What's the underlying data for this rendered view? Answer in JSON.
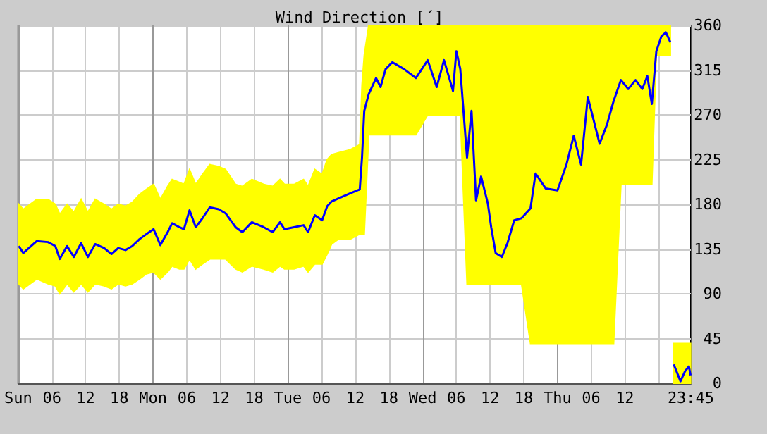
{
  "chart_data": {
    "type": "line",
    "title": "Wind Direction [´]",
    "grid": true,
    "marker": "none",
    "xlim": [
      "--01-07T00:00",
      "--01-11T23:45"
    ],
    "xticks": [
      {
        "value": "--01-07T00:00",
        "label": "Sun"
      },
      {
        "value": "--01-07T06:00",
        "label": "06"
      },
      {
        "value": "--01-07T12:00",
        "label": "12"
      },
      {
        "value": "--01-07T18:00",
        "label": "18"
      },
      {
        "value": "--01-08T00:00",
        "label": "Mon"
      },
      {
        "value": "--01-08T06:00",
        "label": "06"
      },
      {
        "value": "--01-08T12:00",
        "label": "12"
      },
      {
        "value": "--01-08T18:00",
        "label": "18"
      },
      {
        "value": "--01-09T00:00",
        "label": "Tue"
      },
      {
        "value": "--01-09T06:00",
        "label": "06"
      },
      {
        "value": "--01-09T12:00",
        "label": "12"
      },
      {
        "value": "--01-09T18:00",
        "label": "18"
      },
      {
        "value": "--01-10T00:00",
        "label": "Wed"
      },
      {
        "value": "--01-10T06:00",
        "label": "06"
      },
      {
        "value": "--01-10T12:00",
        "label": "12"
      },
      {
        "value": "--01-10T18:00",
        "label": "18"
      },
      {
        "value": "--01-11T00:00",
        "label": "Thu"
      },
      {
        "value": "--01-11T06:00",
        "label": "06"
      },
      {
        "value": "--01-11T12:00",
        "label": "12"
      },
      {
        "value": "--01-11T18:00",
        "label": null
      },
      {
        "value": "--01-11T23:45",
        "label": "23:45"
      }
    ],
    "ylim": [
      0,
      360
    ],
    "yticks": [
      0,
      45,
      90,
      135,
      180,
      225,
      270,
      315,
      360
    ],
    "series": [
      {
        "color": "#0000ff",
        "x": [
          "--01-07T00:06",
          "--01-07T00:54",
          "--01-07T03:18",
          "--01-07T05:18",
          "--01-07T06:36",
          "--01-07T07:24",
          "--01-07T08:42",
          "--01-07T09:54",
          "--01-07T11:12",
          "--01-07T12:24",
          "--01-07T13:42",
          "--01-07T15:18",
          "--01-07T16:36",
          "--01-07T17:48",
          "--01-07T19:06",
          "--01-07T20:18",
          "--01-07T21:36",
          "--01-07T22:48",
          "--01-08T00:06",
          "--01-08T01:18",
          "--01-08T02:36",
          "--01-08T03:24",
          "--01-08T04:42",
          "--01-08T05:30",
          "--01-08T06:30",
          "--01-08T07:36",
          "--01-08T08:48",
          "--01-08T10:06",
          "--01-08T11:42",
          "--01-08T12:54",
          "--01-08T14:42",
          "--01-08T15:54",
          "--01-08T17:36",
          "--01-08T19:42",
          "--01-08T21:18",
          "--01-08T22:36",
          "--01-08T23:24",
          "--01-09T01:06",
          "--01-09T02:48",
          "--01-09T03:36",
          "--01-09T04:48",
          "--01-09T06:06",
          "--01-09T07:00",
          "--01-09T07:48",
          "--01-09T09:00",
          "--01-09T11:06",
          "--01-09T12:48",
          "--01-09T13:12",
          "--01-09T13:36",
          "--01-09T14:24",
          "--01-09T15:42",
          "--01-09T16:30",
          "--01-09T17:24",
          "--01-09T18:36",
          "--01-09T20:42",
          "--01-09T22:48",
          "--01-10T00:54",
          "--01-10T02:30",
          "--01-10T03:48",
          "--01-10T05:24",
          "--01-10T06:00",
          "--01-10T06:42",
          "--01-10T07:54",
          "--01-10T08:42",
          "--01-10T09:30",
          "--01-10T10:24",
          "--01-10T11:36",
          "--01-10T12:12",
          "--01-10T13:00",
          "--01-10T14:06",
          "--01-10T15:06",
          "--01-10T16:18",
          "--01-10T17:36",
          "--01-10T19:12",
          "--01-10T20:06",
          "--01-10T21:54",
          "--01-11T00:00",
          "--01-11T01:36",
          "--01-11T02:54",
          "--01-11T04:12",
          "--01-11T05:24",
          "--01-11T07:30",
          "--01-11T08:48",
          "--01-11T10:00",
          "--01-11T11:18",
          "--01-11T12:36",
          "--01-11T13:54",
          "--01-11T15:06",
          "--01-11T16:00",
          "--01-11T16:48",
          "--01-11T17:36",
          "--01-11T18:30",
          "--01-11T19:18",
          "--01-11T20:06",
          "--01-11T20:24",
          "--01-11T20:42",
          "--01-11T21:54",
          "--01-11T22:42",
          "--01-11T23:24",
          "--01-11T23:42"
        ],
        "values": [
          138,
          131,
          143,
          142,
          138,
          125,
          138,
          127,
          141,
          127,
          140,
          136,
          130,
          136,
          134,
          138,
          145,
          150,
          155,
          139,
          152,
          161,
          157,
          155,
          174,
          157,
          166,
          177,
          175,
          171,
          157,
          152,
          162,
          157,
          152,
          162,
          155,
          157,
          159,
          152,
          169,
          164,
          178,
          183,
          186,
          191,
          195,
          227,
          274,
          291,
          307,
          298,
          316,
          323,
          316,
          307,
          325,
          298,
          325,
          294,
          334,
          316,
          227,
          274,
          184,
          208,
          181,
          157,
          131,
          127,
          141,
          164,
          166,
          176,
          211,
          196,
          194,
          220,
          249,
          220,
          288,
          241,
          260,
          284,
          305,
          296,
          305,
          296,
          309,
          281,
          334,
          349,
          353,
          343,
          null,
          19,
          2,
          12,
          17,
          8
        ],
        "lower": [
          100,
          95,
          105,
          100,
          98,
          90,
          100,
          92,
          100,
          92,
          100,
          98,
          95,
          100,
          98,
          100,
          105,
          110,
          112,
          105,
          112,
          118,
          115,
          115,
          125,
          115,
          120,
          125,
          125,
          125,
          115,
          112,
          118,
          115,
          112,
          118,
          115,
          115,
          118,
          112,
          120,
          120,
          130,
          140,
          145,
          145,
          150,
          150,
          150,
          250,
          250,
          250,
          250,
          250,
          250,
          250,
          270,
          270,
          270,
          270,
          270,
          270,
          100,
          100,
          100,
          100,
          100,
          100,
          100,
          100,
          100,
          100,
          100,
          40,
          40,
          40,
          40,
          40,
          40,
          40,
          40,
          40,
          40,
          40,
          200,
          200,
          200,
          200,
          200,
          200,
          330,
          330,
          330,
          330,
          null,
          0,
          0,
          0,
          0,
          0
        ],
        "upper": [
          180,
          175,
          185,
          185,
          180,
          170,
          180,
          172,
          185,
          172,
          185,
          180,
          175,
          180,
          178,
          182,
          190,
          195,
          200,
          185,
          198,
          205,
          202,
          200,
          215,
          200,
          210,
          220,
          218,
          215,
          200,
          198,
          205,
          200,
          198,
          205,
          200,
          200,
          205,
          198,
          215,
          210,
          225,
          230,
          232,
          235,
          240,
          300,
          330,
          360,
          360,
          360,
          360,
          360,
          360,
          360,
          360,
          360,
          360,
          360,
          360,
          360,
          360,
          360,
          360,
          360,
          360,
          360,
          360,
          360,
          360,
          360,
          360,
          360,
          360,
          360,
          360,
          360,
          360,
          360,
          360,
          360,
          360,
          360,
          360,
          360,
          360,
          360,
          360,
          360,
          360,
          360,
          360,
          360,
          null,
          40,
          40,
          40,
          40,
          40
        ]
      }
    ]
  }
}
